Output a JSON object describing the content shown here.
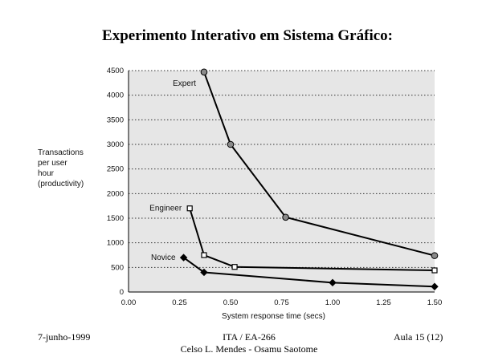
{
  "page": {
    "title": "Experimento Interativo em Sistema Gráfico:",
    "footer": {
      "date": "7-junho-1999",
      "course": "ITA / EA-266",
      "authors": "Celso L. Mendes - Osamu Saotome",
      "lecture": "Aula 15 (12)"
    }
  },
  "chart_data": {
    "type": "line",
    "ylabel_lines": [
      "Transactions",
      "per user",
      "hour",
      "(productivity)"
    ],
    "xlabel": "System response time (secs)",
    "xlim": [
      0,
      1.5
    ],
    "ylim": [
      0,
      4500
    ],
    "x_ticks": [
      "0.00",
      "0.25",
      "0.50",
      "0.75",
      "1.00",
      "1.25",
      "1.50"
    ],
    "y_ticks": [
      "0",
      "500",
      "1000",
      "1500",
      "2000",
      "2500",
      "3000",
      "3500",
      "4000",
      "4500"
    ],
    "grid": "horizontal dotted",
    "background": "#e6e6e6",
    "series": [
      {
        "name": "Expert",
        "marker": "circle",
        "points": [
          [
            0.37,
            4470
          ],
          [
            0.5,
            3000
          ],
          [
            0.77,
            1520
          ],
          [
            1.5,
            740
          ]
        ]
      },
      {
        "name": "Engineer",
        "marker": "square",
        "points": [
          [
            0.3,
            1700
          ],
          [
            0.37,
            750
          ],
          [
            0.52,
            510
          ],
          [
            1.5,
            440
          ]
        ]
      },
      {
        "name": "Novice",
        "marker": "diamond",
        "points": [
          [
            0.27,
            700
          ],
          [
            0.37,
            400
          ],
          [
            1.0,
            190
          ],
          [
            1.5,
            110
          ]
        ]
      }
    ]
  }
}
